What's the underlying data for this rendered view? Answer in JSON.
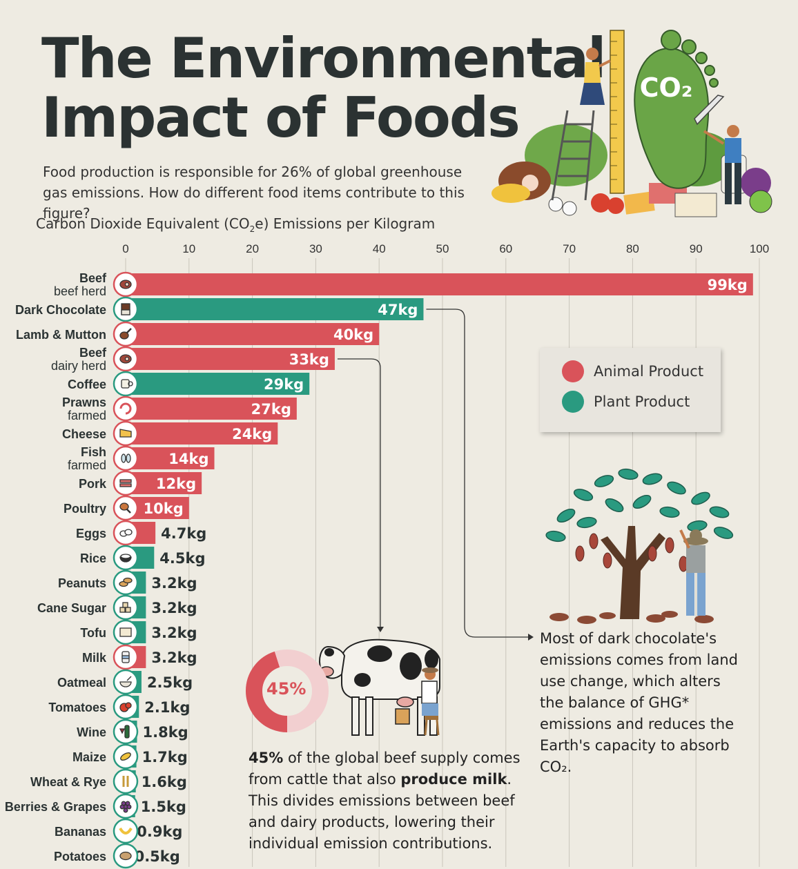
{
  "title_line1": "The Environmental",
  "title_line2": "Impact of Foods",
  "subtitle": "Food production is responsible for 26% of global greenhouse gas emissions. How do different food items contribute to this figure?",
  "axis_title_prefix": "Carbon Dioxide Equivalent (CO",
  "axis_title_sub": "2",
  "axis_title_suffix": "e) Emissions per Kilogram",
  "co2_badge": "CO₂",
  "colors": {
    "animal": "#d9535a",
    "plant": "#2a9a80",
    "donut_light": "#f2cfd0"
  },
  "legend": [
    {
      "label": "Animal Product",
      "type": "animal"
    },
    {
      "label": "Plant Product",
      "type": "plant"
    }
  ],
  "chart_data": {
    "type": "bar",
    "orientation": "horizontal",
    "xlim": [
      0,
      100
    ],
    "xticks": [
      "0",
      "10",
      "20",
      "30",
      "40",
      "50",
      "60",
      "70",
      "80",
      "90",
      "100"
    ],
    "items": [
      {
        "name": "Beef",
        "sub": "beef herd",
        "value": 99,
        "label": "99kg",
        "type": "animal",
        "icon": "meat-icon"
      },
      {
        "name": "Dark Chocolate",
        "sub": "",
        "value": 47,
        "label": "47kg",
        "type": "plant",
        "icon": "chocolate-icon"
      },
      {
        "name": "Lamb & Mutton",
        "sub": "",
        "value": 40,
        "label": "40kg",
        "type": "animal",
        "icon": "lamb-leg-icon"
      },
      {
        "name": "Beef",
        "sub": "dairy herd",
        "value": 33,
        "label": "33kg",
        "type": "animal",
        "icon": "meat-icon"
      },
      {
        "name": "Coffee",
        "sub": "",
        "value": 29,
        "label": "29kg",
        "type": "plant",
        "icon": "coffee-cup-icon"
      },
      {
        "name": "Prawns",
        "sub": "farmed",
        "value": 27,
        "label": "27kg",
        "type": "animal",
        "icon": "prawn-icon"
      },
      {
        "name": "Cheese",
        "sub": "",
        "value": 24,
        "label": "24kg",
        "type": "animal",
        "icon": "cheese-icon"
      },
      {
        "name": "Fish",
        "sub": "farmed",
        "value": 14,
        "label": "14kg",
        "type": "animal",
        "icon": "fish-icon"
      },
      {
        "name": "Pork",
        "sub": "",
        "value": 12,
        "label": "12kg",
        "type": "animal",
        "icon": "bacon-icon"
      },
      {
        "name": "Poultry",
        "sub": "",
        "value": 10,
        "label": "10kg",
        "type": "animal",
        "icon": "drumstick-icon"
      },
      {
        "name": "Eggs",
        "sub": "",
        "value": 4.7,
        "label": "4.7kg",
        "type": "animal",
        "icon": "eggs-icon"
      },
      {
        "name": "Rice",
        "sub": "",
        "value": 4.5,
        "label": "4.5kg",
        "type": "plant",
        "icon": "rice-bowl-icon"
      },
      {
        "name": "Peanuts",
        "sub": "",
        "value": 3.2,
        "label": "3.2kg",
        "type": "plant",
        "icon": "peanut-icon"
      },
      {
        "name": "Cane Sugar",
        "sub": "",
        "value": 3.2,
        "label": "3.2kg",
        "type": "plant",
        "icon": "sugar-cubes-icon"
      },
      {
        "name": "Tofu",
        "sub": "",
        "value": 3.2,
        "label": "3.2kg",
        "type": "plant",
        "icon": "tofu-icon"
      },
      {
        "name": "Milk",
        "sub": "",
        "value": 3.2,
        "label": "3.2kg",
        "type": "animal",
        "icon": "milk-bottle-icon"
      },
      {
        "name": "Oatmeal",
        "sub": "",
        "value": 2.5,
        "label": "2.5kg",
        "type": "plant",
        "icon": "oatmeal-bowl-icon"
      },
      {
        "name": "Tomatoes",
        "sub": "",
        "value": 2.1,
        "label": "2.1kg",
        "type": "plant",
        "icon": "tomato-icon"
      },
      {
        "name": "Wine",
        "sub": "",
        "value": 1.8,
        "label": "1.8kg",
        "type": "plant",
        "icon": "wine-icon"
      },
      {
        "name": "Maize",
        "sub": "",
        "value": 1.7,
        "label": "1.7kg",
        "type": "plant",
        "icon": "corn-icon"
      },
      {
        "name": "Wheat & Rye",
        "sub": "",
        "value": 1.6,
        "label": "1.6kg",
        "type": "plant",
        "icon": "wheat-icon"
      },
      {
        "name": "Berries & Grapes",
        "sub": "",
        "value": 1.5,
        "label": "1.5kg",
        "type": "plant",
        "icon": "grapes-icon"
      },
      {
        "name": "Bananas",
        "sub": "",
        "value": 0.9,
        "label": "0.9kg",
        "type": "plant",
        "icon": "banana-icon"
      },
      {
        "name": "Potatoes",
        "sub": "",
        "value": 0.5,
        "label": "0.5kg",
        "type": "plant",
        "icon": "potato-icon"
      }
    ]
  },
  "donut": {
    "value": 45,
    "label": "45%"
  },
  "note_chocolate": "Most of dark chocolate's emissions comes from land use change, which alters the balance of GHG* emissions and reduces the Earth's capacity to absorb CO₂.",
  "note_beef": {
    "bold1": "45%",
    "text1": " of the global beef supply comes from cattle that also ",
    "bold2": "produce milk",
    "text2": ". This divides emissions between beef and dairy products, lowering their individual emission contributions."
  }
}
